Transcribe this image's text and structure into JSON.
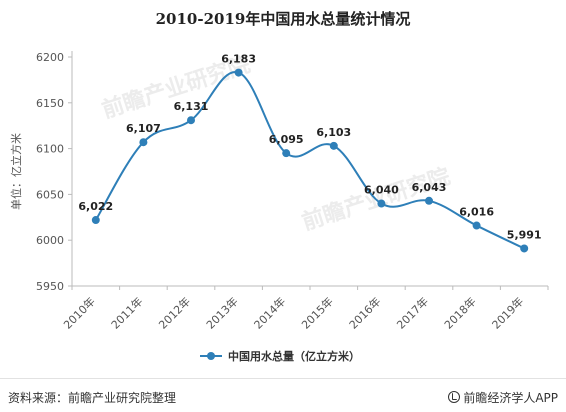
{
  "title": "2010-2019年中国用水总量统计情况",
  "footer": {
    "source": "资料来源：前瞻产业研究院整理",
    "brand": "前瞻经济学人APP"
  },
  "watermark": "前瞻产业研究院",
  "colors": {
    "series": "#2e7fb8",
    "axis": "#bbbbbb",
    "grid": "#e6e6e6"
  },
  "chart_data": {
    "type": "line",
    "title": "2010-2019年中国用水总量统计情况",
    "ylabel": "单位：亿立方米",
    "xlabel": "",
    "categories": [
      "2010年",
      "2011年",
      "2012年",
      "2013年",
      "2014年",
      "2015年",
      "2016年",
      "2017年",
      "2018年",
      "2019年"
    ],
    "series": [
      {
        "name": "中国用水总量（亿立方米）",
        "values": [
          6022,
          6107,
          6131,
          6183,
          6095,
          6103,
          6040,
          6043,
          6016,
          5991
        ],
        "labels": [
          "6,022",
          "6,107",
          "6,131",
          "6,183",
          "6,095",
          "6,103",
          "6,040",
          "6,043",
          "6,016",
          "5,991"
        ]
      }
    ],
    "ylim": [
      5950,
      6200
    ],
    "yticks": [
      5950,
      6000,
      6050,
      6100,
      6150,
      6200
    ],
    "grid": false,
    "legend": "bottom-center",
    "smooth": true
  }
}
